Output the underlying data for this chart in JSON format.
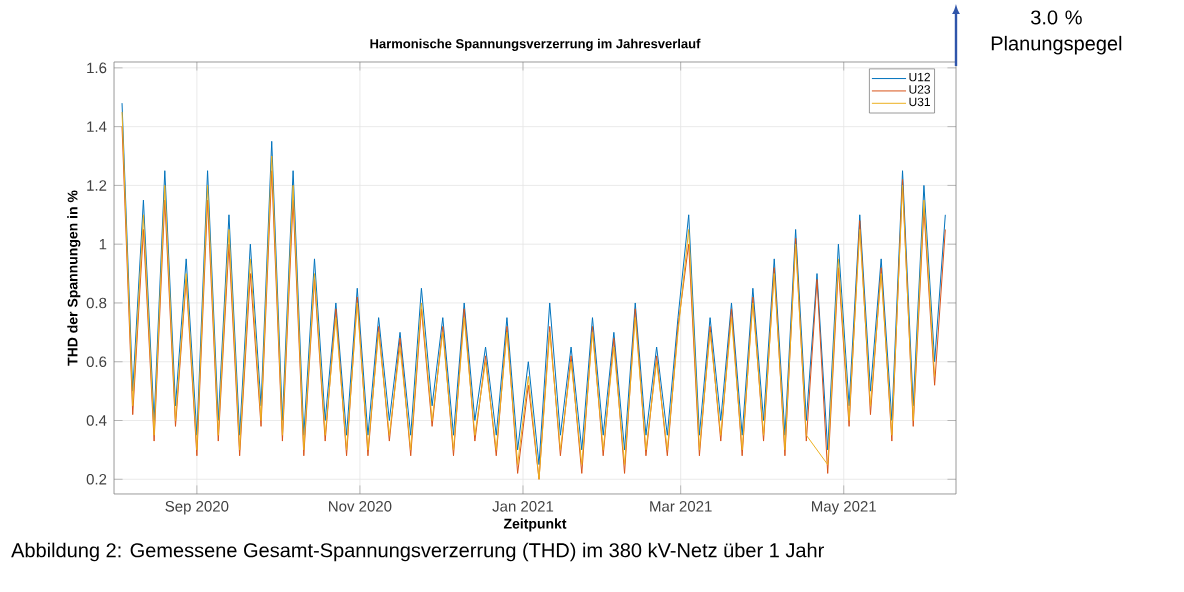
{
  "chart_data": {
    "type": "line",
    "title": "Harmonische Spannungsverzerrung im Jahresverlauf",
    "xlabel": "Zeitpunkt",
    "ylabel": "THD der Spannungen in %",
    "annotations": [
      "3.0 % Planungspegel",
      "Abbildung 2: Gemessene Gesamt-Spannungsverzerrung (THD) im 380 kV-Netz über 1 Jahr"
    ],
    "x": [
      "2020-08-04",
      "2020-08-08",
      "2020-08-12",
      "2020-08-16",
      "2020-08-20",
      "2020-08-24",
      "2020-08-28",
      "2020-09-01",
      "2020-09-05",
      "2020-09-09",
      "2020-09-13",
      "2020-09-17",
      "2020-09-21",
      "2020-09-25",
      "2020-09-29",
      "2020-10-03",
      "2020-10-07",
      "2020-10-11",
      "2020-10-15",
      "2020-10-19",
      "2020-10-23",
      "2020-10-27",
      "2020-10-31",
      "2020-11-04",
      "2020-11-08",
      "2020-11-12",
      "2020-11-16",
      "2020-11-20",
      "2020-11-24",
      "2020-11-28",
      "2020-12-02",
      "2020-12-06",
      "2020-12-10",
      "2020-12-14",
      "2020-12-18",
      "2020-12-22",
      "2020-12-26",
      "2020-12-30",
      "2021-01-03",
      "2021-01-07",
      "2021-01-11",
      "2021-01-15",
      "2021-01-19",
      "2021-01-23",
      "2021-01-27",
      "2021-01-31",
      "2021-02-04",
      "2021-02-08",
      "2021-02-12",
      "2021-02-16",
      "2021-02-20",
      "2021-02-24",
      "2021-02-28",
      "2021-03-04",
      "2021-03-08",
      "2021-03-12",
      "2021-03-16",
      "2021-03-20",
      "2021-03-24",
      "2021-03-28",
      "2021-04-01",
      "2021-04-05",
      "2021-04-09",
      "2021-04-13",
      "2021-04-17",
      "2021-04-21",
      "2021-04-25",
      "2021-04-29",
      "2021-05-03",
      "2021-05-07",
      "2021-05-11",
      "2021-05-15",
      "2021-05-19",
      "2021-05-23",
      "2021-05-27",
      "2021-05-31",
      "2021-06-04",
      "2021-06-08"
    ],
    "series": [
      {
        "name": "U12",
        "color": "#0072bd",
        "values": [
          1.48,
          0.5,
          1.15,
          0.4,
          1.25,
          0.45,
          0.95,
          0.35,
          1.25,
          0.4,
          1.1,
          0.35,
          1.0,
          0.45,
          1.35,
          0.4,
          1.25,
          0.35,
          0.95,
          0.4,
          0.8,
          0.35,
          0.85,
          0.35,
          0.75,
          0.4,
          0.7,
          0.35,
          0.85,
          0.45,
          0.75,
          0.35,
          0.8,
          0.4,
          0.65,
          0.35,
          0.75,
          0.3,
          0.6,
          0.25,
          0.8,
          0.35,
          0.65,
          0.3,
          0.75,
          0.35,
          0.7,
          0.3,
          0.8,
          0.35,
          0.65,
          0.35,
          0.75,
          1.1,
          0.35,
          0.75,
          0.4,
          0.8,
          0.35,
          0.85,
          0.4,
          0.95,
          0.35,
          1.05,
          0.4,
          0.9,
          0.3,
          1.0,
          0.45,
          1.1,
          0.5,
          0.95,
          0.4,
          1.25,
          0.45,
          1.2,
          0.6,
          1.1
        ]
      },
      {
        "name": "U23",
        "color": "#d95319",
        "values": [
          1.4,
          0.42,
          1.05,
          0.33,
          1.15,
          0.38,
          0.88,
          0.28,
          1.15,
          0.33,
          1.0,
          0.28,
          0.9,
          0.38,
          1.25,
          0.33,
          1.15,
          0.28,
          0.88,
          0.33,
          0.78,
          0.28,
          0.82,
          0.28,
          0.72,
          0.33,
          0.68,
          0.28,
          0.78,
          0.38,
          0.72,
          0.28,
          0.78,
          0.33,
          0.62,
          0.28,
          0.72,
          0.22,
          0.52,
          0.2,
          0.72,
          0.28,
          0.62,
          0.22,
          0.72,
          0.28,
          0.68,
          0.22,
          0.78,
          0.28,
          0.62,
          0.28,
          0.72,
          1.0,
          0.28,
          0.72,
          0.33,
          0.78,
          0.28,
          0.82,
          0.33,
          0.92,
          0.28,
          1.02,
          0.33,
          0.88,
          0.22,
          0.92,
          0.38,
          1.08,
          0.42,
          0.92,
          0.33,
          1.22,
          0.38,
          1.12,
          0.52,
          1.05
        ]
      },
      {
        "name": "U31",
        "color": "#edb120",
        "values": [
          1.45,
          0.45,
          1.1,
          0.35,
          1.2,
          0.4,
          0.9,
          0.3,
          1.2,
          0.35,
          1.05,
          0.3,
          0.95,
          0.4,
          1.3,
          0.35,
          1.2,
          0.3,
          0.9,
          0.35,
          0.75,
          0.3,
          0.8,
          0.3,
          0.7,
          0.35,
          0.65,
          0.3,
          0.8,
          0.4,
          0.7,
          0.3,
          0.75,
          0.35,
          0.6,
          0.3,
          0.7,
          0.25,
          0.55,
          0.2,
          0.7,
          0.3,
          0.6,
          0.25,
          0.7,
          0.3,
          0.65,
          0.25,
          0.75,
          0.3,
          0.6,
          0.3,
          0.7,
          1.05,
          0.3,
          0.7,
          0.35,
          0.75,
          0.3,
          0.8,
          0.35,
          0.9,
          0.3,
          1.0,
          0.35,
          null,
          0.25,
          0.95,
          0.4,
          1.05,
          0.45,
          0.9,
          0.35,
          1.2,
          0.4,
          1.15,
          0.55,
          null
        ]
      }
    ],
    "xlim": [
      "2020-08-01",
      "2021-06-12"
    ],
    "xticks": [
      {
        "value": "2020-09-01",
        "label": "Sep 2020"
      },
      {
        "value": "2020-11-01",
        "label": "Nov 2020"
      },
      {
        "value": "2021-01-01",
        "label": "Jan 2021"
      },
      {
        "value": "2021-03-01",
        "label": "Mar 2021"
      },
      {
        "value": "2021-05-01",
        "label": "May 2021"
      }
    ],
    "ylim": [
      0.15,
      1.62
    ],
    "yticks": [
      0.2,
      0.4,
      0.6,
      0.8,
      1,
      1.2,
      1.4,
      1.6
    ],
    "grid": true,
    "legend": "top right"
  }
}
